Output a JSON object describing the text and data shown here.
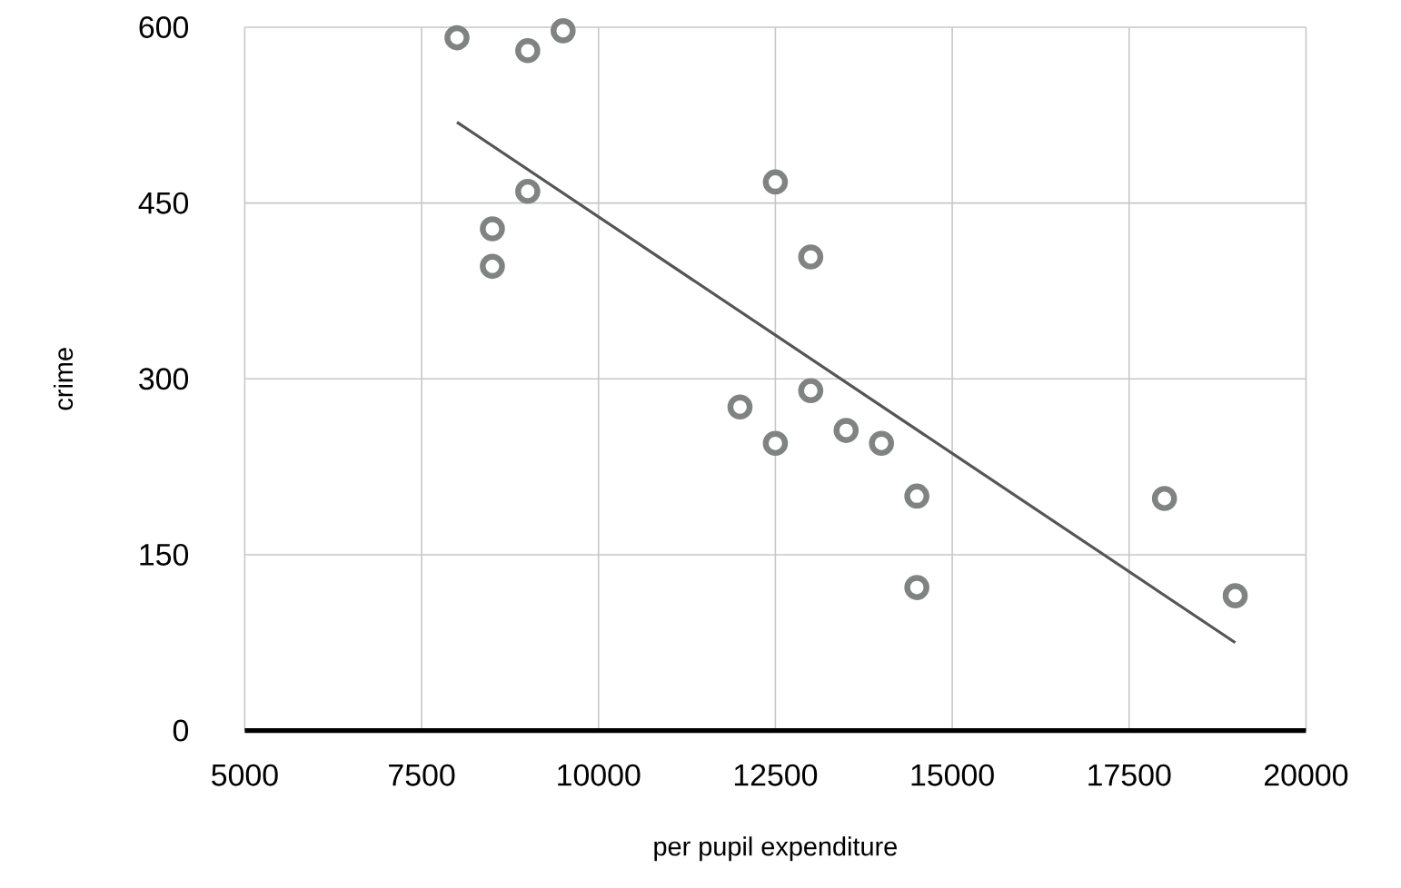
{
  "chart_data": {
    "type": "scatter",
    "xlabel": "per pupil expenditure",
    "ylabel": "crime",
    "xlim": [
      5000,
      20000
    ],
    "ylim": [
      0,
      600
    ],
    "xticks": [
      5000,
      7500,
      10000,
      12500,
      15000,
      17500,
      20000
    ],
    "yticks": [
      0,
      150,
      300,
      450,
      600
    ],
    "grid": true,
    "series": [
      {
        "marker": "circle",
        "color": "#7f8482",
        "x": [
          8000,
          9000,
          9500,
          9000,
          8500,
          8500,
          12500,
          13000,
          12000,
          13000,
          12500,
          13500,
          14000,
          14500,
          14500,
          18000,
          19000
        ],
        "values": [
          591,
          580,
          597,
          460,
          428,
          396,
          468,
          404,
          276,
          290,
          245,
          256,
          245,
          200,
          122,
          198,
          115
        ]
      },
      {
        "type": "line",
        "marker": "none",
        "color": "#555555",
        "x": [
          8000,
          19000
        ],
        "values": [
          519,
          75
        ]
      }
    ]
  }
}
